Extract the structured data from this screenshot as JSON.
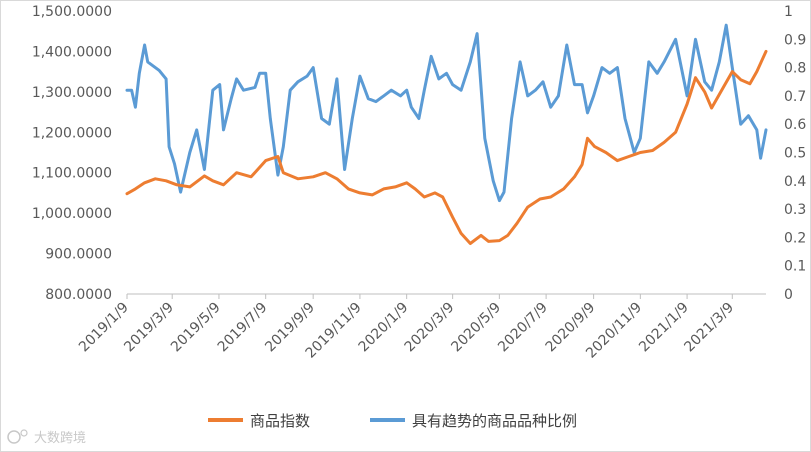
{
  "watermark": "大数跨境",
  "chart_data": {
    "type": "line",
    "x_axis": {
      "start": "2019-01-09",
      "end": "2021-04-22",
      "tick_labels": [
        "2019/1/9",
        "2019/3/9",
        "2019/5/9",
        "2019/7/9",
        "2019/9/9",
        "2019/11/9",
        "2020/1/9",
        "2020/3/9",
        "2020/5/9",
        "2020/7/9",
        "2020/9/9",
        "2020/11/9",
        "2021/1/9",
        "2021/3/9"
      ]
    },
    "y_left": {
      "ylim": [
        800,
        1500
      ],
      "tick_labels": [
        "800.0000",
        "900.0000",
        "1,000.0000",
        "1,100.0000",
        "1,200.0000",
        "1,300.0000",
        "1,400.0000",
        "1,500.0000"
      ]
    },
    "y_right": {
      "ylim": [
        0,
        1
      ],
      "tick_labels": [
        "0",
        "0.1",
        "0.2",
        "0.3",
        "0.4",
        "0.5",
        "0.6",
        "0.7",
        "0.8",
        "0.9",
        "1"
      ]
    },
    "grid": false,
    "legend_position": "bottom",
    "series": [
      {
        "name": "商品指数",
        "axis": "left",
        "color": "#ED7D31",
        "points": [
          [
            "2019-01-09",
            1048
          ],
          [
            "2019-01-20",
            1060
          ],
          [
            "2019-02-01",
            1075
          ],
          [
            "2019-02-15",
            1085
          ],
          [
            "2019-03-01",
            1080
          ],
          [
            "2019-03-15",
            1070
          ],
          [
            "2019-04-01",
            1065
          ],
          [
            "2019-04-20",
            1092
          ],
          [
            "2019-05-01",
            1080
          ],
          [
            "2019-05-15",
            1070
          ],
          [
            "2019-06-01",
            1100
          ],
          [
            "2019-06-20",
            1090
          ],
          [
            "2019-07-09",
            1130
          ],
          [
            "2019-07-25",
            1140
          ],
          [
            "2019-08-01",
            1100
          ],
          [
            "2019-08-20",
            1085
          ],
          [
            "2019-09-09",
            1090
          ],
          [
            "2019-09-25",
            1100
          ],
          [
            "2019-10-10",
            1085
          ],
          [
            "2019-10-25",
            1060
          ],
          [
            "2019-11-09",
            1050
          ],
          [
            "2019-11-25",
            1045
          ],
          [
            "2019-12-10",
            1060
          ],
          [
            "2019-12-25",
            1065
          ],
          [
            "2020-01-09",
            1075
          ],
          [
            "2020-01-20",
            1060
          ],
          [
            "2020-02-01",
            1040
          ],
          [
            "2020-02-15",
            1050
          ],
          [
            "2020-02-25",
            1040
          ],
          [
            "2020-03-09",
            990
          ],
          [
            "2020-03-20",
            950
          ],
          [
            "2020-04-01",
            925
          ],
          [
            "2020-04-15",
            945
          ],
          [
            "2020-04-25",
            930
          ],
          [
            "2020-05-09",
            932
          ],
          [
            "2020-05-20",
            945
          ],
          [
            "2020-06-01",
            975
          ],
          [
            "2020-06-15",
            1015
          ],
          [
            "2020-07-01",
            1035
          ],
          [
            "2020-07-15",
            1040
          ],
          [
            "2020-08-01",
            1060
          ],
          [
            "2020-08-15",
            1090
          ],
          [
            "2020-08-25",
            1120
          ],
          [
            "2020-09-01",
            1185
          ],
          [
            "2020-09-10",
            1165
          ],
          [
            "2020-09-25",
            1150
          ],
          [
            "2020-10-10",
            1130
          ],
          [
            "2020-10-25",
            1140
          ],
          [
            "2020-11-09",
            1150
          ],
          [
            "2020-11-25",
            1155
          ],
          [
            "2020-12-10",
            1175
          ],
          [
            "2020-12-25",
            1200
          ],
          [
            "2021-01-09",
            1270
          ],
          [
            "2021-01-20",
            1335
          ],
          [
            "2021-02-01",
            1300
          ],
          [
            "2021-02-10",
            1260
          ],
          [
            "2021-02-25",
            1310
          ],
          [
            "2021-03-09",
            1350
          ],
          [
            "2021-03-20",
            1330
          ],
          [
            "2021-04-01",
            1320
          ],
          [
            "2021-04-10",
            1350
          ],
          [
            "2021-04-22",
            1400
          ]
        ]
      },
      {
        "name": "具有趋势的商品品种比例",
        "axis": "right",
        "color": "#5B9BD5",
        "points": [
          [
            "2019-01-09",
            0.72
          ],
          [
            "2019-01-15",
            0.72
          ],
          [
            "2019-01-20",
            0.66
          ],
          [
            "2019-01-25",
            0.78
          ],
          [
            "2019-02-01",
            0.88
          ],
          [
            "2019-02-05",
            0.82
          ],
          [
            "2019-02-20",
            0.79
          ],
          [
            "2019-03-01",
            0.76
          ],
          [
            "2019-03-05",
            0.52
          ],
          [
            "2019-03-12",
            0.46
          ],
          [
            "2019-03-20",
            0.36
          ],
          [
            "2019-04-01",
            0.5
          ],
          [
            "2019-04-10",
            0.58
          ],
          [
            "2019-04-20",
            0.44
          ],
          [
            "2019-05-01",
            0.72
          ],
          [
            "2019-05-10",
            0.74
          ],
          [
            "2019-05-15",
            0.58
          ],
          [
            "2019-05-25",
            0.69
          ],
          [
            "2019-06-01",
            0.76
          ],
          [
            "2019-06-10",
            0.72
          ],
          [
            "2019-06-25",
            0.73
          ],
          [
            "2019-07-01",
            0.78
          ],
          [
            "2019-07-09",
            0.78
          ],
          [
            "2019-07-15",
            0.62
          ],
          [
            "2019-07-25",
            0.42
          ],
          [
            "2019-08-01",
            0.52
          ],
          [
            "2019-08-10",
            0.72
          ],
          [
            "2019-08-20",
            0.75
          ],
          [
            "2019-09-01",
            0.77
          ],
          [
            "2019-09-09",
            0.8
          ],
          [
            "2019-09-20",
            0.62
          ],
          [
            "2019-09-30",
            0.6
          ],
          [
            "2019-10-10",
            0.76
          ],
          [
            "2019-10-20",
            0.44
          ],
          [
            "2019-10-30",
            0.62
          ],
          [
            "2019-11-09",
            0.77
          ],
          [
            "2019-11-20",
            0.69
          ],
          [
            "2019-11-30",
            0.68
          ],
          [
            "2019-12-10",
            0.7
          ],
          [
            "2019-12-20",
            0.72
          ],
          [
            "2020-01-01",
            0.7
          ],
          [
            "2020-01-09",
            0.72
          ],
          [
            "2020-01-15",
            0.66
          ],
          [
            "2020-01-25",
            0.62
          ],
          [
            "2020-02-01",
            0.72
          ],
          [
            "2020-02-10",
            0.84
          ],
          [
            "2020-02-20",
            0.76
          ],
          [
            "2020-03-01",
            0.78
          ],
          [
            "2020-03-09",
            0.74
          ],
          [
            "2020-03-20",
            0.72
          ],
          [
            "2020-04-01",
            0.82
          ],
          [
            "2020-04-10",
            0.92
          ],
          [
            "2020-04-20",
            0.55
          ],
          [
            "2020-05-01",
            0.4
          ],
          [
            "2020-05-09",
            0.33
          ],
          [
            "2020-05-15",
            0.36
          ],
          [
            "2020-05-25",
            0.62
          ],
          [
            "2020-06-05",
            0.82
          ],
          [
            "2020-06-15",
            0.7
          ],
          [
            "2020-06-25",
            0.72
          ],
          [
            "2020-07-05",
            0.75
          ],
          [
            "2020-07-15",
            0.66
          ],
          [
            "2020-07-25",
            0.7
          ],
          [
            "2020-08-05",
            0.88
          ],
          [
            "2020-08-15",
            0.74
          ],
          [
            "2020-08-25",
            0.74
          ],
          [
            "2020-09-01",
            0.64
          ],
          [
            "2020-09-09",
            0.7
          ],
          [
            "2020-09-20",
            0.8
          ],
          [
            "2020-09-30",
            0.78
          ],
          [
            "2020-10-10",
            0.8
          ],
          [
            "2020-10-20",
            0.62
          ],
          [
            "2020-11-01",
            0.5
          ],
          [
            "2020-11-09",
            0.55
          ],
          [
            "2020-11-20",
            0.82
          ],
          [
            "2020-12-01",
            0.78
          ],
          [
            "2020-12-10",
            0.82
          ],
          [
            "2020-12-25",
            0.9
          ],
          [
            "2021-01-09",
            0.7
          ],
          [
            "2021-01-20",
            0.9
          ],
          [
            "2021-02-01",
            0.75
          ],
          [
            "2021-02-10",
            0.72
          ],
          [
            "2021-02-20",
            0.82
          ],
          [
            "2021-03-01",
            0.95
          ],
          [
            "2021-03-09",
            0.8
          ],
          [
            "2021-03-20",
            0.6
          ],
          [
            "2021-03-30",
            0.63
          ],
          [
            "2021-04-10",
            0.58
          ],
          [
            "2021-04-15",
            0.48
          ],
          [
            "2021-04-22",
            0.58
          ]
        ]
      }
    ]
  }
}
